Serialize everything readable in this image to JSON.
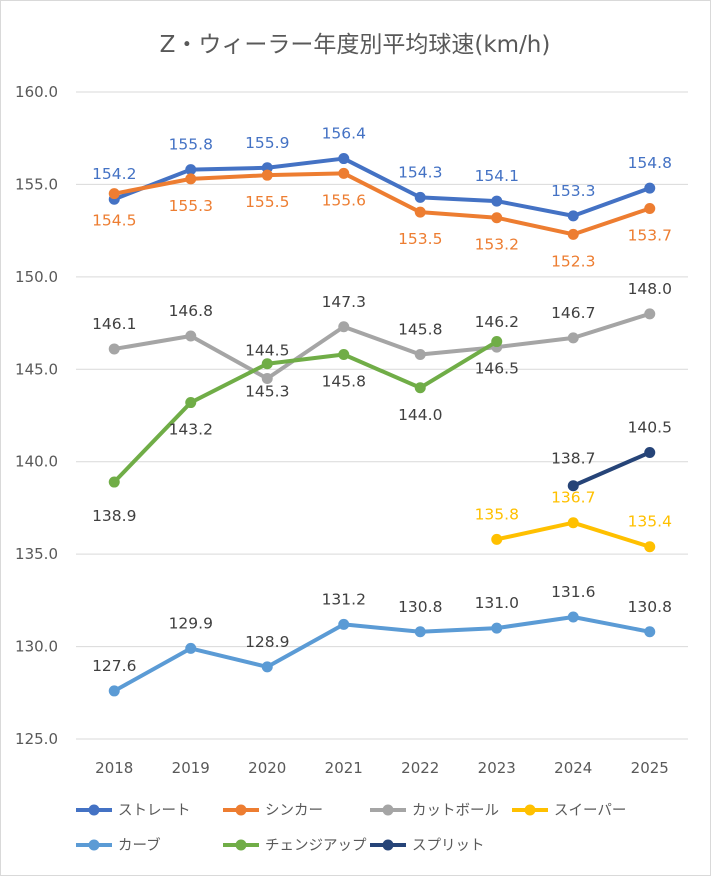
{
  "chart_data": {
    "type": "line",
    "title": "Z・ウィーラー年度別平均球速(km/h)",
    "xlabel": "",
    "ylabel": "",
    "categories": [
      "2018",
      "2019",
      "2020",
      "2021",
      "2022",
      "2023",
      "2024",
      "2025"
    ],
    "ylim": [
      125.0,
      160.0
    ],
    "ytick_step": 5.0,
    "yticks": [
      "125.0",
      "130.0",
      "135.0",
      "140.0",
      "145.0",
      "150.0",
      "155.0",
      "160.0"
    ],
    "grid": true,
    "legend_position": "bottom",
    "series": [
      {
        "name": "ストレート",
        "color": "#4472C4",
        "values": [
          154.2,
          155.8,
          155.9,
          156.4,
          154.3,
          154.1,
          153.3,
          154.8
        ],
        "labels": [
          "154.2",
          "155.8",
          "155.9",
          "156.4",
          "154.3",
          "154.1",
          "153.3",
          "154.8"
        ]
      },
      {
        "name": "シンカー",
        "color": "#ED7D31",
        "values": [
          154.5,
          155.3,
          155.5,
          155.6,
          153.5,
          153.2,
          152.3,
          153.7
        ],
        "labels": [
          "154.5",
          "155.3",
          "155.5",
          "155.6",
          "153.5",
          "153.2",
          "152.3",
          "153.7"
        ]
      },
      {
        "name": "カットボール",
        "color": "#A5A5A5",
        "values": [
          146.1,
          146.8,
          144.5,
          147.3,
          145.8,
          146.2,
          146.7,
          148.0
        ],
        "labels": [
          "146.1",
          "146.8",
          "144.5",
          "147.3",
          "145.8",
          "146.2",
          "146.7",
          "148.0"
        ]
      },
      {
        "name": "スイーパー",
        "color": "#FFC000",
        "values": [
          null,
          null,
          null,
          null,
          null,
          135.8,
          136.7,
          135.4
        ],
        "labels": [
          null,
          null,
          null,
          null,
          null,
          "135.8",
          "136.7",
          "135.4"
        ]
      },
      {
        "name": "カーブ",
        "color": "#5B9BD5",
        "values": [
          127.6,
          129.9,
          128.9,
          131.2,
          130.8,
          131.0,
          131.6,
          130.8
        ],
        "labels": [
          "127.6",
          "129.9",
          "128.9",
          "131.2",
          "130.8",
          "131.0",
          "131.6",
          "130.8"
        ]
      },
      {
        "name": "チェンジアップ",
        "color": "#70AD47",
        "values": [
          138.9,
          143.2,
          145.3,
          145.8,
          144.0,
          146.5,
          null,
          null
        ],
        "labels": [
          "138.9",
          "143.2",
          "145.3",
          "145.8",
          "144.0",
          "146.5",
          null,
          null
        ]
      },
      {
        "name": "スプリット",
        "color": "#264478",
        "values": [
          null,
          null,
          null,
          null,
          null,
          null,
          138.7,
          140.5
        ],
        "labels": [
          null,
          null,
          null,
          null,
          null,
          null,
          "138.7",
          "140.5"
        ]
      }
    ]
  }
}
